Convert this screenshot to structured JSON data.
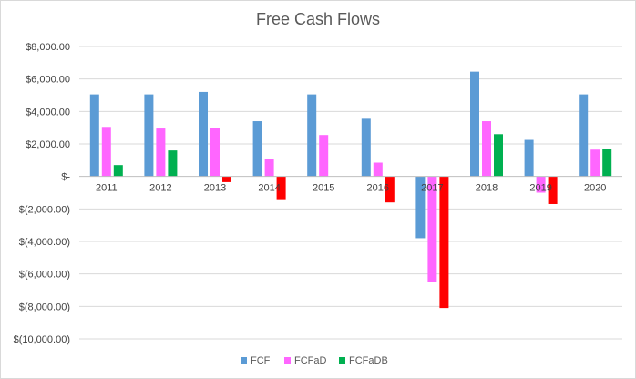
{
  "chart_data": {
    "type": "bar",
    "title": "Free Cash Flows",
    "xlabel": "",
    "ylabel": "",
    "categories": [
      "2011",
      "2012",
      "2013",
      "2014",
      "2015",
      "2016",
      "2017",
      "2018",
      "2019",
      "2020"
    ],
    "series": [
      {
        "name": "FCF",
        "color": "#5b9bd5",
        "values": [
          5050,
          5050,
          5200,
          3400,
          5050,
          3550,
          -3800,
          6450,
          2250,
          5050
        ]
      },
      {
        "name": "FCFaD",
        "color": "#ff66ff",
        "values": [
          3050,
          2950,
          3000,
          1050,
          2550,
          850,
          -6500,
          3400,
          -1000,
          1650
        ]
      },
      {
        "name": "FCFaDB",
        "color": "#00b050",
        "altColor": "#ff0000",
        "values": [
          700,
          1600,
          -350,
          -1400,
          0,
          -1600,
          -8100,
          2600,
          -1700,
          1700
        ]
      }
    ],
    "yticks": [
      {
        "value": 8000,
        "label": "$8,000.00"
      },
      {
        "value": 6000,
        "label": "$6,000.00"
      },
      {
        "value": 4000,
        "label": "$4,000.00"
      },
      {
        "value": 2000,
        "label": "$2,000.00"
      },
      {
        "value": 0,
        "label": "$-"
      },
      {
        "value": -2000,
        "label": "$(2,000.00)"
      },
      {
        "value": -4000,
        "label": "$(4,000.00)"
      },
      {
        "value": -6000,
        "label": "$(6,000.00)"
      },
      {
        "value": -8000,
        "label": "$(8,000.00)"
      },
      {
        "value": -10000,
        "label": "$(10,000.00)"
      }
    ],
    "ylim": [
      -10000,
      8000
    ],
    "grid": true,
    "legend": "bottom",
    "colors": {
      "gridline": "#d9d9d9",
      "axis": "#bfbfbf"
    }
  }
}
